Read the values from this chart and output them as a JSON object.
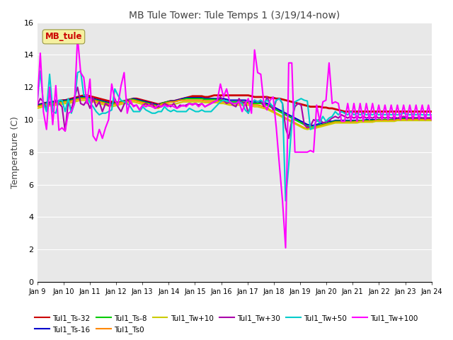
{
  "title": "MB Tule Tower: Tule Temps 1 (3/19/14-now)",
  "ylabel": "Temperature (C)",
  "ylim": [
    0,
    16
  ],
  "yticks": [
    0,
    2,
    4,
    6,
    8,
    10,
    12,
    14,
    16
  ],
  "x_labels": [
    "Jan 9",
    "Jan 10",
    "Jan 11",
    "Jan 12",
    "Jan 13",
    "Jan 14",
    "Jan 15",
    "Jan 16",
    "Jan 17",
    "Jan 18",
    "Jan 19",
    "Jan 20",
    "Jan 21",
    "Jan 22",
    "Jan 23",
    "Jan 24"
  ],
  "n_days": 16,
  "pts_per_day": 8,
  "bg_color": "#e8e8e8",
  "annotation_label": "MB_tule",
  "annotation_color": "#cc0000",
  "annotation_bg": "#f5f0a0",
  "series": {
    "Tul1_Ts-32": {
      "color": "#cc0000",
      "lw": 2.0,
      "data": [
        10.9,
        10.95,
        11.0,
        11.05,
        11.05,
        11.1,
        11.1,
        11.15,
        11.2,
        11.2,
        11.25,
        11.3,
        11.35,
        11.4,
        11.45,
        11.5,
        11.5,
        11.45,
        11.4,
        11.35,
        11.3,
        11.25,
        11.2,
        11.15,
        11.1,
        11.1,
        11.05,
        11.1,
        11.15,
        11.2,
        11.25,
        11.3,
        11.3,
        11.25,
        11.2,
        11.15,
        11.1,
        11.05,
        11.0,
        10.95,
        11.0,
        11.05,
        11.1,
        11.15,
        11.15,
        11.2,
        11.25,
        11.3,
        11.35,
        11.4,
        11.45,
        11.45,
        11.45,
        11.45,
        11.4,
        11.4,
        11.45,
        11.5,
        11.5,
        11.5,
        11.5,
        11.5,
        11.5,
        11.5,
        11.5,
        11.5,
        11.5,
        11.5,
        11.5,
        11.45,
        11.4,
        11.4,
        11.4,
        11.4,
        11.4,
        11.35,
        11.35,
        11.3,
        11.3,
        11.25,
        11.2,
        11.15,
        11.1,
        11.05,
        11.0,
        10.95,
        10.9,
        10.85,
        10.8,
        10.8,
        10.8,
        10.8,
        10.75,
        10.75,
        10.7,
        10.7,
        10.65,
        10.6,
        10.55,
        10.5,
        10.5,
        10.5,
        10.5,
        10.5,
        10.5,
        10.5,
        10.5,
        10.5,
        10.5,
        10.5,
        10.5,
        10.5,
        10.5,
        10.5,
        10.5,
        10.5,
        10.5,
        10.5,
        10.5,
        10.5,
        10.5,
        10.5,
        10.5,
        10.5,
        10.5,
        10.5,
        10.5,
        10.5
      ]
    },
    "Tul1_Ts-16": {
      "color": "#0000cc",
      "lw": 1.5,
      "data": [
        10.9,
        10.95,
        11.0,
        11.05,
        11.05,
        11.1,
        11.1,
        11.15,
        11.15,
        11.2,
        11.2,
        11.25,
        11.3,
        11.35,
        11.4,
        11.4,
        11.4,
        11.35,
        11.3,
        11.25,
        11.2,
        11.15,
        11.1,
        11.05,
        11.0,
        11.0,
        11.05,
        11.1,
        11.15,
        11.2,
        11.25,
        11.3,
        11.25,
        11.2,
        11.15,
        11.1,
        11.05,
        11.0,
        10.95,
        10.9,
        11.0,
        11.05,
        11.1,
        11.15,
        11.15,
        11.2,
        11.25,
        11.3,
        11.35,
        11.35,
        11.35,
        11.35,
        11.35,
        11.35,
        11.3,
        11.3,
        11.3,
        11.3,
        11.3,
        11.3,
        11.3,
        11.25,
        11.2,
        11.2,
        11.2,
        11.2,
        11.2,
        11.2,
        11.15,
        11.1,
        11.1,
        11.1,
        11.1,
        11.05,
        11.0,
        10.9,
        10.8,
        10.7,
        10.6,
        10.5,
        10.4,
        10.3,
        10.2,
        10.1,
        10.0,
        9.9,
        9.8,
        9.7,
        9.65,
        9.65,
        9.7,
        9.75,
        9.8,
        9.85,
        9.9,
        9.9,
        9.95,
        9.95,
        9.95,
        9.95,
        9.95,
        9.95,
        9.95,
        9.95,
        9.95,
        9.95,
        10.0,
        10.0,
        10.0,
        10.0,
        10.0,
        10.0,
        10.0,
        10.0,
        10.0,
        10.05,
        10.05,
        10.05,
        10.1,
        10.1,
        10.1,
        10.1,
        10.1,
        10.1,
        10.1,
        10.1,
        10.1,
        10.1
      ]
    },
    "Tul1_Ts-8": {
      "color": "#00cc00",
      "lw": 1.5,
      "data": [
        10.85,
        10.9,
        10.95,
        11.0,
        11.0,
        11.05,
        11.05,
        11.1,
        11.1,
        11.15,
        11.15,
        11.2,
        11.25,
        11.3,
        11.35,
        11.35,
        11.35,
        11.3,
        11.25,
        11.2,
        11.15,
        11.1,
        11.05,
        11.0,
        10.95,
        11.0,
        11.05,
        11.1,
        11.15,
        11.2,
        11.25,
        11.25,
        11.2,
        11.15,
        11.1,
        11.05,
        11.0,
        10.95,
        10.9,
        10.85,
        11.0,
        11.05,
        11.1,
        11.1,
        11.1,
        11.15,
        11.2,
        11.25,
        11.3,
        11.3,
        11.3,
        11.3,
        11.3,
        11.3,
        11.25,
        11.25,
        11.25,
        11.25,
        11.25,
        11.2,
        11.2,
        11.15,
        11.1,
        11.1,
        11.1,
        11.1,
        11.1,
        11.05,
        11.05,
        11.0,
        11.0,
        11.0,
        11.0,
        10.95,
        10.9,
        10.8,
        10.7,
        10.6,
        10.5,
        10.4,
        10.3,
        10.2,
        10.1,
        10.0,
        9.9,
        9.8,
        9.7,
        9.6,
        9.55,
        9.55,
        9.6,
        9.65,
        9.7,
        9.75,
        9.8,
        9.85,
        9.9,
        9.9,
        9.9,
        9.9,
        9.9,
        9.9,
        9.9,
        9.9,
        9.95,
        9.95,
        9.95,
        9.95,
        9.95,
        9.95,
        10.0,
        10.0,
        10.0,
        10.0,
        10.0,
        10.0,
        10.0,
        10.05,
        10.05,
        10.05,
        10.05,
        10.05,
        10.05,
        10.05,
        10.05,
        10.05,
        10.05,
        10.05
      ]
    },
    "Tul1_Ts0": {
      "color": "#ff8800",
      "lw": 1.5,
      "data": [
        10.8,
        10.85,
        10.9,
        10.95,
        10.95,
        11.0,
        11.0,
        11.05,
        11.05,
        11.1,
        11.1,
        11.15,
        11.2,
        11.25,
        11.3,
        11.3,
        11.3,
        11.25,
        11.2,
        11.15,
        11.1,
        11.05,
        11.0,
        10.95,
        10.9,
        10.95,
        11.0,
        11.05,
        11.1,
        11.15,
        11.2,
        11.2,
        11.15,
        11.1,
        11.05,
        11.0,
        10.95,
        10.9,
        10.85,
        10.8,
        10.95,
        11.0,
        11.05,
        11.1,
        11.1,
        11.15,
        11.2,
        11.2,
        11.2,
        11.2,
        11.2,
        11.2,
        11.2,
        11.2,
        11.15,
        11.15,
        11.15,
        11.15,
        11.15,
        11.1,
        11.1,
        11.05,
        11.0,
        11.0,
        11.0,
        11.0,
        11.0,
        11.0,
        11.0,
        10.95,
        10.9,
        10.9,
        10.85,
        10.8,
        10.75,
        10.6,
        10.5,
        10.4,
        10.3,
        10.2,
        10.1,
        10.0,
        9.9,
        9.8,
        9.7,
        9.6,
        9.5,
        9.45,
        9.5,
        9.5,
        9.55,
        9.6,
        9.65,
        9.7,
        9.75,
        9.8,
        9.85,
        9.85,
        9.85,
        9.85,
        9.85,
        9.85,
        9.85,
        9.9,
        9.9,
        9.9,
        9.9,
        9.9,
        9.9,
        9.95,
        9.95,
        9.95,
        9.95,
        9.95,
        9.95,
        9.95,
        10.0,
        10.0,
        10.0,
        10.0,
        10.0,
        10.0,
        10.0,
        10.0,
        10.0,
        10.0,
        10.0,
        10.0
      ]
    },
    "Tul1_Tw+10": {
      "color": "#cccc00",
      "lw": 1.5,
      "data": [
        10.7,
        10.75,
        10.8,
        10.85,
        10.85,
        10.9,
        10.9,
        10.95,
        10.95,
        11.0,
        11.0,
        11.05,
        11.1,
        11.15,
        11.2,
        11.2,
        11.2,
        11.15,
        11.1,
        11.05,
        11.0,
        10.95,
        10.9,
        10.85,
        10.8,
        10.85,
        10.9,
        10.95,
        11.0,
        11.05,
        11.1,
        11.1,
        11.05,
        11.0,
        10.95,
        10.9,
        10.85,
        10.8,
        10.75,
        10.7,
        10.85,
        10.9,
        10.95,
        10.95,
        10.95,
        11.0,
        11.05,
        11.1,
        11.1,
        11.1,
        11.1,
        11.1,
        11.1,
        11.1,
        11.05,
        11.05,
        11.05,
        11.05,
        11.05,
        11.0,
        11.0,
        10.95,
        10.9,
        10.9,
        10.9,
        10.9,
        10.9,
        10.9,
        10.9,
        10.85,
        10.8,
        10.8,
        10.75,
        10.7,
        10.65,
        10.55,
        10.45,
        10.35,
        10.25,
        10.15,
        10.05,
        9.95,
        9.85,
        9.75,
        9.65,
        9.55,
        9.45,
        9.4,
        9.45,
        9.45,
        9.5,
        9.55,
        9.6,
        9.65,
        9.7,
        9.75,
        9.8,
        9.8,
        9.8,
        9.8,
        9.8,
        9.8,
        9.8,
        9.8,
        9.85,
        9.85,
        9.85,
        9.85,
        9.85,
        9.9,
        9.9,
        9.9,
        9.9,
        9.9,
        9.9,
        9.9,
        9.95,
        9.95,
        9.95,
        9.95,
        9.95,
        9.95,
        9.95,
        9.95,
        9.95,
        9.95,
        9.95,
        9.95
      ]
    },
    "Tul1_Tw+30": {
      "color": "#aa00aa",
      "lw": 1.5,
      "data": [
        10.9,
        11.3,
        11.1,
        10.7,
        11.0,
        10.85,
        11.2,
        11.0,
        10.8,
        9.3,
        11.1,
        10.6,
        11.4,
        12.0,
        11.0,
        10.9,
        11.2,
        10.7,
        11.35,
        10.8,
        11.1,
        10.5,
        11.0,
        10.85,
        10.9,
        11.3,
        10.8,
        10.5,
        10.95,
        11.25,
        11.05,
        10.85,
        10.9,
        10.6,
        10.9,
        11.0,
        10.85,
        11.0,
        10.7,
        10.8,
        10.8,
        11.0,
        10.9,
        10.8,
        11.0,
        10.7,
        10.9,
        10.85,
        10.9,
        11.0,
        10.95,
        11.0,
        10.9,
        11.0,
        10.8,
        10.9,
        11.0,
        11.1,
        11.2,
        11.4,
        11.2,
        11.0,
        11.1,
        10.9,
        10.8,
        11.3,
        11.0,
        11.1,
        10.4,
        11.0,
        11.2,
        11.1,
        11.2,
        10.8,
        11.4,
        11.0,
        10.6,
        11.2,
        11.3,
        11.0,
        9.5,
        8.85,
        10.0,
        10.8,
        11.0,
        10.9,
        9.7,
        9.5,
        9.6,
        10.0,
        9.9,
        10.05,
        9.8,
        9.85,
        9.95,
        10.1,
        10.2,
        10.1,
        10.3,
        10.2,
        10.1,
        10.2,
        10.1,
        10.2,
        10.1,
        10.2,
        10.1,
        10.15,
        10.1,
        10.2,
        10.1,
        10.15,
        10.1,
        10.15,
        10.1,
        10.15,
        10.1,
        10.15,
        10.2,
        10.15,
        10.1,
        10.15,
        10.1,
        10.15,
        10.1,
        10.1,
        10.1,
        10.1
      ]
    },
    "Tul1_Tw+50": {
      "color": "#00cccc",
      "lw": 1.5,
      "data": [
        11.1,
        13.0,
        11.0,
        10.5,
        12.8,
        10.5,
        10.4,
        11.2,
        11.2,
        10.5,
        11.3,
        10.4,
        11.0,
        12.9,
        13.0,
        11.5,
        11.5,
        11.05,
        10.8,
        10.5,
        10.3,
        10.4,
        10.4,
        10.5,
        10.6,
        11.9,
        11.5,
        11.2,
        11.1,
        11.0,
        10.8,
        10.5,
        10.5,
        10.5,
        10.8,
        10.6,
        10.5,
        10.4,
        10.4,
        10.5,
        10.5,
        10.8,
        10.6,
        10.5,
        10.6,
        10.5,
        10.5,
        10.5,
        10.5,
        10.7,
        10.6,
        10.5,
        10.5,
        10.6,
        10.5,
        10.5,
        10.5,
        10.7,
        10.9,
        11.1,
        11.2,
        11.15,
        11.1,
        11.0,
        11.0,
        11.1,
        11.0,
        10.6,
        10.4,
        11.0,
        11.2,
        11.1,
        11.2,
        11.05,
        11.2,
        11.0,
        10.8,
        11.2,
        11.3,
        11.0,
        5.0,
        7.2,
        9.8,
        11.1,
        11.2,
        11.3,
        11.2,
        11.15,
        9.4,
        9.5,
        10.0,
        9.8,
        10.2,
        9.9,
        10.1,
        10.2,
        10.5,
        10.3,
        10.5,
        10.4,
        10.3,
        10.5,
        10.3,
        10.4,
        10.3,
        10.4,
        10.3,
        10.35,
        10.3,
        10.4,
        10.3,
        10.35,
        10.3,
        10.35,
        10.3,
        10.35,
        10.3,
        10.35,
        10.4,
        10.35,
        10.3,
        10.35,
        10.3,
        10.35,
        10.3,
        10.3,
        10.3,
        10.3
      ]
    },
    "Tul1_Tw+100": {
      "color": "#ff00ff",
      "lw": 1.5,
      "data": [
        10.9,
        14.1,
        10.5,
        9.4,
        12.0,
        9.7,
        12.1,
        9.35,
        9.5,
        9.3,
        10.4,
        10.5,
        11.0,
        15.1,
        12.9,
        12.6,
        11.0,
        12.5,
        9.0,
        8.7,
        9.4,
        8.85,
        9.5,
        10.0,
        12.2,
        11.2,
        10.9,
        12.1,
        12.9,
        10.4,
        11.2,
        10.8,
        10.9,
        10.6,
        10.9,
        10.8,
        10.9,
        10.8,
        10.7,
        10.9,
        10.8,
        10.9,
        10.8,
        10.9,
        10.8,
        10.7,
        10.8,
        10.9,
        10.8,
        11.0,
        10.9,
        11.0,
        10.8,
        11.0,
        10.8,
        10.9,
        11.0,
        11.1,
        11.2,
        12.2,
        11.4,
        11.9,
        11.1,
        11.0,
        11.0,
        11.1,
        10.5,
        11.0,
        11.3,
        10.4,
        14.3,
        12.9,
        12.8,
        11.0,
        10.6,
        11.2,
        11.4,
        9.5,
        7.2,
        5.0,
        2.1,
        13.5,
        13.5,
        8.0,
        8.0,
        8.0,
        8.0,
        8.0,
        8.1,
        8.0,
        10.9,
        9.9,
        11.1,
        11.2,
        13.5,
        11.0,
        11.1,
        11.0,
        9.9,
        9.9,
        11.0,
        9.9,
        11.0,
        9.9,
        11.0,
        9.9,
        11.0,
        10.0,
        11.0,
        10.0,
        10.9,
        10.0,
        10.9,
        10.0,
        10.9,
        10.0,
        10.9,
        10.0,
        10.9,
        10.0,
        10.9,
        10.0,
        10.9,
        10.0,
        10.9,
        10.0,
        10.9,
        10.0
      ]
    }
  },
  "legend_entries": [
    {
      "label": "Tul1_Ts-32",
      "color": "#cc0000"
    },
    {
      "label": "Tul1_Ts-16",
      "color": "#0000cc"
    },
    {
      "label": "Tul1_Ts-8",
      "color": "#00cc00"
    },
    {
      "label": "Tul1_Ts0",
      "color": "#ff8800"
    },
    {
      "label": "Tul1_Tw+10",
      "color": "#cccc00"
    },
    {
      "label": "Tul1_Tw+30",
      "color": "#aa00aa"
    },
    {
      "label": "Tul1_Tw+50",
      "color": "#00cccc"
    },
    {
      "label": "Tul1_Tw+100",
      "color": "#ff00ff"
    }
  ]
}
